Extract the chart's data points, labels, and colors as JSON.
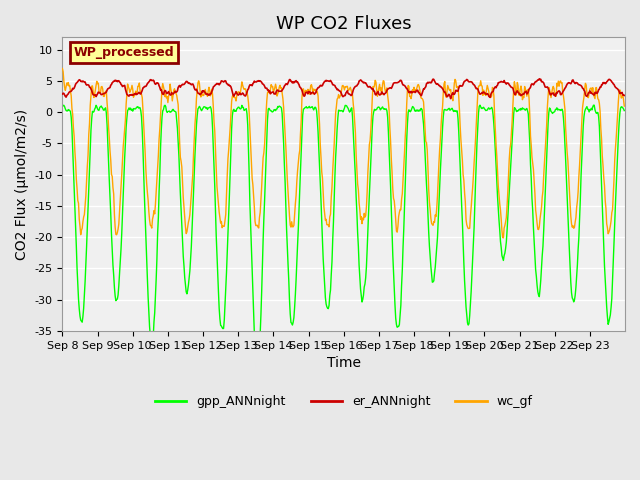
{
  "title": "WP CO2 Fluxes",
  "xlabel": "Time",
  "ylabel": "CO2 Flux (μmol/m2/s)",
  "ylim": [
    -35,
    12
  ],
  "yticks": [
    -35,
    -30,
    -25,
    -20,
    -15,
    -10,
    -5,
    0,
    5,
    10
  ],
  "xtick_labels": [
    "Sep 8",
    "Sep 9",
    "Sep 10",
    "Sep 11",
    "Sep 12",
    "Sep 13",
    "Sep 14",
    "Sep 15",
    "Sep 16",
    "Sep 17",
    "Sep 18",
    "Sep 19",
    "Sep 20",
    "Sep 21",
    "Sep 22",
    "Sep 23"
  ],
  "gpp_color": "#00FF00",
  "er_color": "#CC0000",
  "wc_color": "#FFA500",
  "legend_labels": [
    "gpp_ANNnight",
    "er_ANNnight",
    "wc_gf"
  ],
  "wp_box_color": "#FFFF99",
  "wp_box_edge": "#8B0000",
  "wp_text_color": "#8B0000",
  "bg_color": "#E8E8E8",
  "plot_bg": "#F0F0F0",
  "grid_color": "#FFFFFF",
  "title_fontsize": 13,
  "label_fontsize": 10,
  "tick_fontsize": 8,
  "n_days": 16,
  "n_per_day": 48
}
